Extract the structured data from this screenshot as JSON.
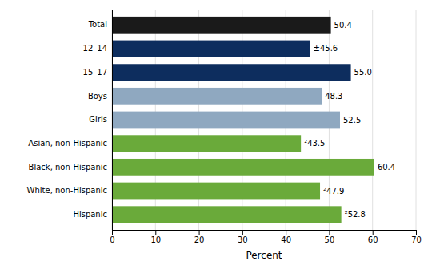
{
  "chart_data": {
    "type": "bar",
    "orientation": "horizontal",
    "categories": [
      "Total",
      "12–14",
      "15–17",
      "Boys",
      "Girls",
      "Asian, non-Hispanic",
      "Black, non-Hispanic",
      "White, non-Hispanic",
      "Hispanic"
    ],
    "values": [
      50.4,
      45.6,
      55.0,
      48.3,
      52.5,
      43.5,
      60.4,
      47.9,
      52.8
    ],
    "value_labels": [
      "50.4",
      "±45.6",
      "55.0",
      "48.3",
      "52.5",
      "²43.5",
      "60.4",
      "²47.9",
      "²52.8"
    ],
    "colors": [
      "#1a1a1a",
      "#0d2d5e",
      "#0d2d5e",
      "#8fa8c0",
      "#8fa8c0",
      "#6aaa3a",
      "#6aaa3a",
      "#6aaa3a",
      "#6aaa3a"
    ],
    "xlabel": "Percent",
    "xlim": [
      0,
      70
    ],
    "xticks": [
      0,
      10,
      20,
      30,
      40,
      50,
      60,
      70
    ],
    "grid": true,
    "data_labels": true
  }
}
